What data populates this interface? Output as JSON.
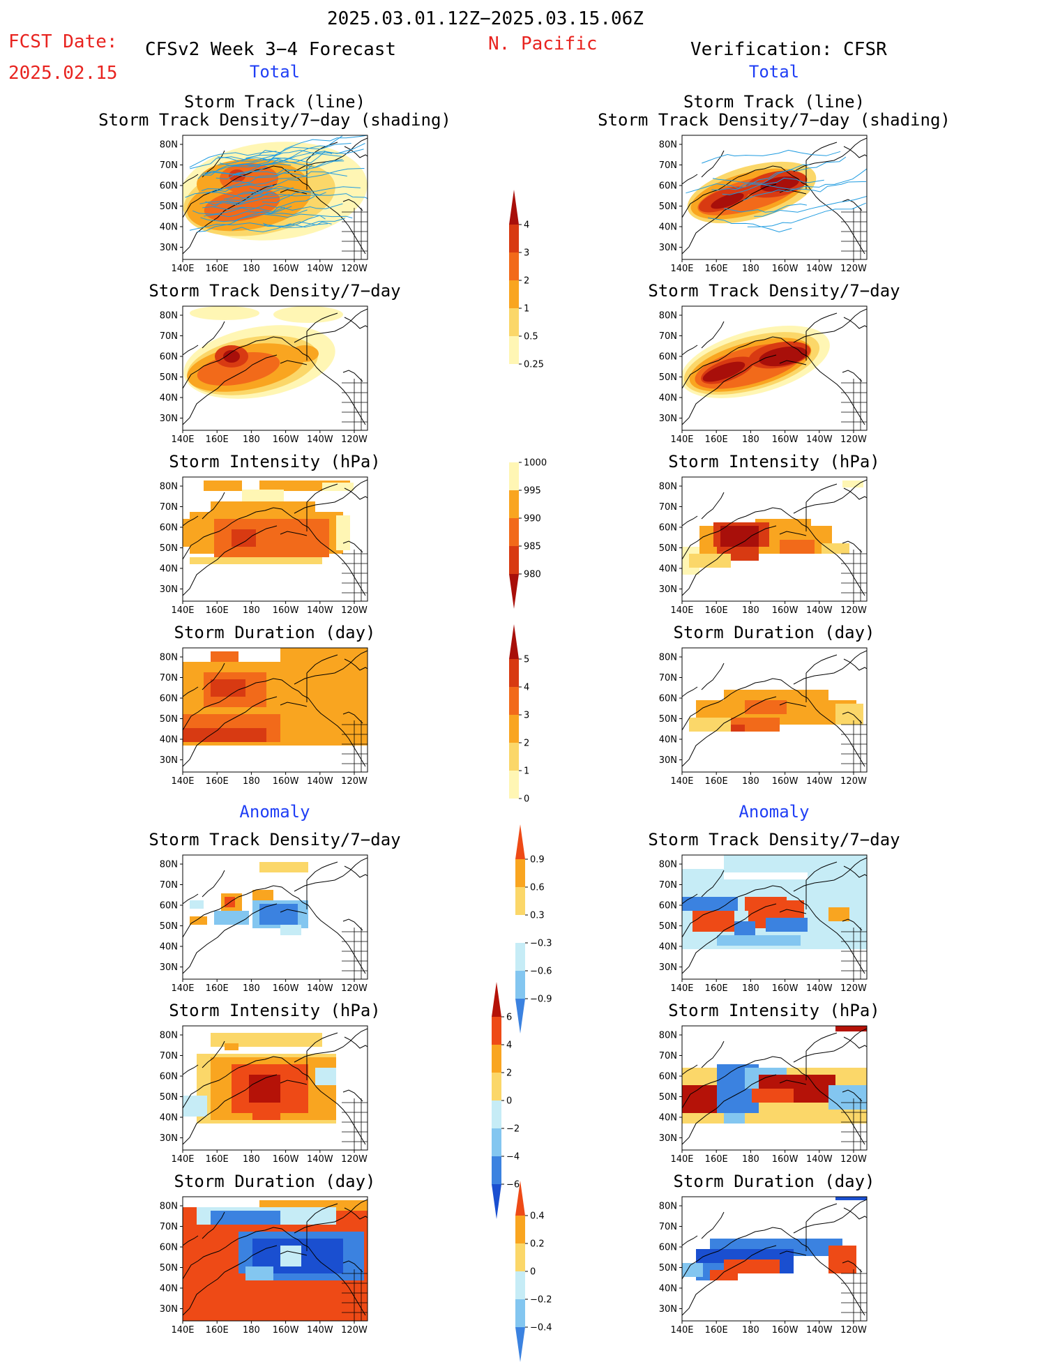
{
  "header": {
    "period": "2025.03.01.12Z−2025.03.15.06Z",
    "fcst_label": "FCST Date:",
    "fcst_date": "2025.02.15",
    "left_title": "CFSv2 Week 3−4 Forecast",
    "region": "N. Pacific",
    "right_title": "Verification: CFSR",
    "total_label": "Total",
    "anomaly_label": "Anomaly"
  },
  "titles": {
    "track_line": "Storm Track (line)",
    "track_shading": "Storm Track Density/7−day (shading)",
    "density": "Storm Track Density/7−day",
    "intensity": "Storm Intensity (hPa)",
    "duration": "Storm Duration (day)"
  },
  "axes": {
    "lat_labels": [
      "80N",
      "70N",
      "60N",
      "50N",
      "40N",
      "30N"
    ],
    "lon_labels": [
      "140E",
      "160E",
      "180",
      "160W",
      "140W",
      "120W"
    ]
  },
  "colorbars": {
    "density": [
      "4",
      "3",
      "2",
      "1",
      "0.5",
      "0.25"
    ],
    "intensity": [
      "1000",
      "995",
      "990",
      "985",
      "980"
    ],
    "duration": [
      "5",
      "4",
      "3",
      "2",
      "1",
      "0"
    ],
    "density_anom": [
      "0.9",
      "0.6",
      "0.3",
      "−0.3",
      "−0.6",
      "−0.9"
    ],
    "intensity_anom": [
      "6",
      "4",
      "2",
      "0",
      "−2",
      "−4",
      "−6"
    ],
    "duration_anom": [
      "0.4",
      "0.2",
      "0",
      "−0.2",
      "−0.4"
    ]
  },
  "colors": {
    "warm": [
      "#fff6b4",
      "#fbd769",
      "#f9a520",
      "#f26a1a",
      "#d83a12",
      "#a80f0a"
    ],
    "anom_warm": [
      "#fbd769",
      "#f9a520",
      "#ee4a16",
      "#b51208"
    ],
    "anom_cool": [
      "#c6ecf6",
      "#83c6f0",
      "#3b82e0",
      "#1a4fd0"
    ],
    "track_line": "#1e9be0",
    "title_red": "#e8231f",
    "label_blue": "#1f3ef5"
  }
}
